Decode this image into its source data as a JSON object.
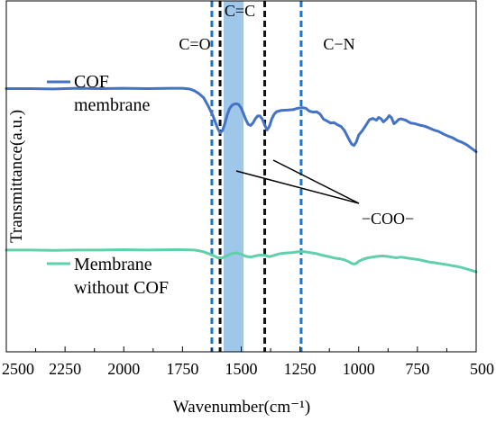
{
  "chart_data": {
    "type": "line",
    "title": "",
    "xlabel": "Wavenumber(cm⁻¹)",
    "ylabel": "Transmittance(a.u.)",
    "xlim": [
      2500,
      500
    ],
    "x_reversed": true,
    "xticks": [
      "2500",
      "2250",
      "2000",
      "1750",
      "1500",
      "1250",
      "1000",
      "750",
      "500"
    ],
    "xtick_values": [
      2500,
      2250,
      2000,
      1750,
      1500,
      1250,
      1000,
      750,
      500
    ],
    "y_ticks_shown": false,
    "grid": false,
    "series": [
      {
        "name": "COF membrane",
        "color": "#4472c4",
        "x": [
          2500,
          2400,
          2300,
          2200,
          2100,
          2000,
          1900,
          1800,
          1750,
          1720,
          1700,
          1680,
          1660,
          1640,
          1620,
          1600,
          1590,
          1580,
          1570,
          1560,
          1550,
          1540,
          1530,
          1520,
          1510,
          1500,
          1490,
          1480,
          1470,
          1460,
          1450,
          1440,
          1430,
          1420,
          1410,
          1400,
          1390,
          1380,
          1370,
          1360,
          1350,
          1330,
          1300,
          1280,
          1260,
          1240,
          1225,
          1210,
          1195,
          1180,
          1165,
          1150,
          1135,
          1120,
          1105,
          1090,
          1075,
          1060,
          1045,
          1030,
          1020,
          1010,
          1000,
          985,
          970,
          955,
          940,
          925,
          915,
          905,
          895,
          880,
          870,
          860,
          850,
          840,
          830,
          820,
          800,
          780,
          760,
          740,
          720,
          700,
          680,
          660,
          640,
          620,
          600,
          580,
          560,
          540,
          520,
          500
        ],
        "y": [
          0.75,
          0.75,
          0.749,
          0.751,
          0.75,
          0.751,
          0.75,
          0.751,
          0.751,
          0.749,
          0.744,
          0.736,
          0.724,
          0.7,
          0.672,
          0.636,
          0.624,
          0.63,
          0.65,
          0.675,
          0.693,
          0.702,
          0.706,
          0.707,
          0.704,
          0.694,
          0.678,
          0.661,
          0.648,
          0.645,
          0.652,
          0.664,
          0.672,
          0.672,
          0.663,
          0.646,
          0.632,
          0.643,
          0.664,
          0.677,
          0.684,
          0.688,
          0.689,
          0.69,
          0.694,
          0.696,
          0.694,
          0.686,
          0.683,
          0.684,
          0.678,
          0.663,
          0.658,
          0.652,
          0.653,
          0.647,
          0.642,
          0.63,
          0.61,
          0.592,
          0.588,
          0.598,
          0.618,
          0.63,
          0.645,
          0.661,
          0.665,
          0.66,
          0.668,
          0.664,
          0.655,
          0.664,
          0.673,
          0.667,
          0.65,
          0.655,
          0.662,
          0.664,
          0.66,
          0.652,
          0.65,
          0.646,
          0.643,
          0.638,
          0.632,
          0.628,
          0.621,
          0.615,
          0.61,
          0.602,
          0.597,
          0.59,
          0.58,
          0.57
        ]
      },
      {
        "name": "Membrane without COF",
        "color": "#5fd1a9",
        "x": [
          2500,
          2400,
          2300,
          2200,
          2100,
          2000,
          1900,
          1800,
          1750,
          1700,
          1680,
          1660,
          1640,
          1620,
          1600,
          1580,
          1560,
          1540,
          1520,
          1500,
          1480,
          1460,
          1440,
          1420,
          1400,
          1380,
          1360,
          1340,
          1320,
          1300,
          1280,
          1260,
          1240,
          1220,
          1200,
          1180,
          1160,
          1140,
          1120,
          1100,
          1080,
          1060,
          1040,
          1030,
          1020,
          1010,
          1000,
          980,
          960,
          940,
          920,
          900,
          880,
          860,
          840,
          820,
          800,
          780,
          760,
          740,
          720,
          700,
          680,
          660,
          640,
          620,
          600,
          580,
          560,
          540,
          520,
          500
        ],
        "y": [
          0.29,
          0.29,
          0.289,
          0.29,
          0.29,
          0.291,
          0.29,
          0.291,
          0.291,
          0.29,
          0.288,
          0.285,
          0.28,
          0.275,
          0.268,
          0.268,
          0.274,
          0.28,
          0.282,
          0.278,
          0.272,
          0.27,
          0.273,
          0.276,
          0.275,
          0.271,
          0.275,
          0.279,
          0.281,
          0.282,
          0.283,
          0.285,
          0.286,
          0.284,
          0.282,
          0.28,
          0.276,
          0.273,
          0.27,
          0.267,
          0.265,
          0.262,
          0.256,
          0.252,
          0.25,
          0.252,
          0.258,
          0.264,
          0.268,
          0.27,
          0.272,
          0.273,
          0.272,
          0.27,
          0.268,
          0.27,
          0.268,
          0.266,
          0.264,
          0.262,
          0.259,
          0.256,
          0.254,
          0.252,
          0.25,
          0.248,
          0.245,
          0.243,
          0.24,
          0.236,
          0.232,
          0.228
        ]
      }
    ],
    "vlines": [
      {
        "x": 1625,
        "color": "#1e74c6",
        "style": "dashed"
      },
      {
        "x": 1590,
        "color": "#111111",
        "style": "dashed"
      },
      {
        "x": 1400,
        "color": "#111111",
        "style": "dashed"
      },
      {
        "x": 1245,
        "color": "#1e74c6",
        "style": "dashed"
      }
    ],
    "shaded_band": {
      "x_from": 1575,
      "x_to": 1490,
      "color": "#9ec7ea"
    },
    "annotations": {
      "c_eq_c": "C=C",
      "c_eq_o": "C=O",
      "c_n": "C−N",
      "coo": "−COO−"
    },
    "legend_placement": "inline labels, left"
  }
}
